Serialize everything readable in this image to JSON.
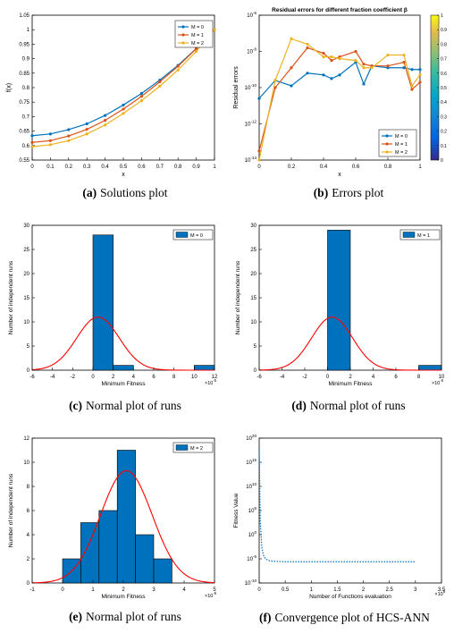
{
  "chart_data": [
    {
      "panel": "(a)",
      "type": "line",
      "title": "",
      "xlabel": "x",
      "ylabel": "f(x)",
      "xlim": [
        0,
        1
      ],
      "ylim": [
        0.55,
        1.05
      ],
      "xticks": [
        "0",
        "0.1",
        "0.2",
        "0.3",
        "0.4",
        "0.5",
        "0.6",
        "0.7",
        "0.8",
        "0.9",
        "1"
      ],
      "yticks": [
        "0.55",
        "0.6",
        "0.65",
        "0.7",
        "0.75",
        "0.8",
        "0.85",
        "0.9",
        "0.95",
        "1",
        "1.05"
      ],
      "legend_position": "top-right",
      "x": [
        0,
        0.1,
        0.2,
        0.3,
        0.4,
        0.5,
        0.6,
        0.7,
        0.8,
        0.9,
        1
      ],
      "series": [
        {
          "name": "M = 0",
          "color": "#0072bd",
          "values": [
            0.634,
            0.64,
            0.655,
            0.675,
            0.704,
            0.74,
            0.78,
            0.826,
            0.877,
            0.935,
            1.0
          ]
        },
        {
          "name": "M = 1",
          "color": "#d95319",
          "values": [
            0.611,
            0.617,
            0.633,
            0.656,
            0.687,
            0.726,
            0.77,
            0.82,
            0.874,
            0.934,
            1.0
          ]
        },
        {
          "name": "M = 2",
          "color": "#edb120",
          "values": [
            0.596,
            0.603,
            0.617,
            0.64,
            0.671,
            0.711,
            0.755,
            0.805,
            0.861,
            0.925,
            1.0
          ]
        }
      ]
    },
    {
      "panel": "(b)",
      "type": "line",
      "title": "Residual errors for different fraction coefficient β",
      "xlabel": "x",
      "ylabel": "Residual errors",
      "xlim": [
        0,
        1
      ],
      "ylim": [
        -14,
        -6
      ],
      "yscale": "log",
      "xticks": [
        "0",
        "0.2",
        "0.4",
        "0.6",
        "0.8",
        "1"
      ],
      "ytick_exponents": [
        "-14",
        "-12",
        "-10",
        "-8",
        "-6"
      ],
      "colorbar_ticks": [
        "0",
        "0.1",
        "0.2",
        "0.3",
        "0.4",
        "0.5",
        "0.6",
        "0.7",
        "0.8",
        "0.9",
        "1"
      ],
      "legend_position": "bottom-right",
      "x": [
        0,
        0.1,
        0.2,
        0.3,
        0.4,
        0.45,
        0.5,
        0.6,
        0.65,
        0.7,
        0.8,
        0.9,
        0.95,
        1
      ],
      "series": [
        {
          "name": "M = 0",
          "color": "#0072bd",
          "log10_values": [
            -10.6,
            -9.6,
            -9.9,
            -9.2,
            -9.3,
            -9.5,
            -9.3,
            -8.6,
            -9.8,
            -8.8,
            -8.9,
            -8.9,
            -9.0,
            -9.0
          ]
        },
        {
          "name": "M = 1",
          "color": "#d95319",
          "log10_values": [
            -13.5,
            -10.0,
            -8.9,
            -7.8,
            -8.1,
            -8.5,
            -8.3,
            -8.0,
            -8.7,
            -8.8,
            -8.8,
            -8.6,
            -10.1,
            -9.7
          ]
        },
        {
          "name": "M = 2",
          "color": "#edb120",
          "log10_values": [
            -14.0,
            -9.6,
            -7.3,
            -7.6,
            -8.3,
            -8.3,
            -8.4,
            -8.5,
            -8.9,
            -8.9,
            -8.2,
            -8.2,
            -9.9,
            -9.3
          ]
        }
      ]
    },
    {
      "panel": "(c)",
      "type": "bar",
      "xlabel": "Minimum Fitness",
      "ylabel": "Number of independent runs",
      "xlim": [
        -6,
        12
      ],
      "ylim": [
        0,
        30
      ],
      "x_exponent": "-5",
      "xticks": [
        "-6",
        "-4",
        "-2",
        "0",
        "2",
        "4",
        "6",
        "8",
        "10",
        "12"
      ],
      "yticks": [
        "0",
        "5",
        "10",
        "15",
        "20",
        "25",
        "30"
      ],
      "legend_position": "top-right",
      "series_name": "M = 0",
      "bins": [
        [
          0,
          2,
          28
        ],
        [
          2,
          4,
          1
        ],
        [
          10,
          12,
          1
        ]
      ],
      "normal_fit": {
        "mean": 0.5,
        "std": 2.1,
        "peak": 11
      }
    },
    {
      "panel": "(d)",
      "type": "bar",
      "xlabel": "Minimum Fitness",
      "ylabel": "Number of independent runs",
      "xlim": [
        -6,
        10
      ],
      "ylim": [
        0,
        30
      ],
      "x_exponent": "-5",
      "xticks": [
        "-6",
        "-4",
        "-2",
        "0",
        "2",
        "4",
        "6",
        "8",
        "10"
      ],
      "yticks": [
        "0",
        "5",
        "10",
        "15",
        "20",
        "25",
        "30"
      ],
      "legend_position": "top-right",
      "series_name": "M = 1",
      "bins": [
        [
          0,
          2,
          29
        ],
        [
          8,
          10,
          1
        ]
      ],
      "normal_fit": {
        "mean": 0.4,
        "std": 1.8,
        "peak": 11
      }
    },
    {
      "panel": "(e)",
      "type": "bar",
      "xlabel": "Minimum Fitness",
      "ylabel": "Number of independent runs",
      "xlim": [
        -1,
        5
      ],
      "ylim": [
        0,
        12
      ],
      "x_exponent": "-6",
      "xticks": [
        "-1",
        "0",
        "1",
        "2",
        "3",
        "4",
        "5"
      ],
      "yticks": [
        "0",
        "2",
        "4",
        "6",
        "8",
        "10",
        "12"
      ],
      "legend_position": "top-right",
      "series_name": "M = 2",
      "bins": [
        [
          0,
          0.6,
          2
        ],
        [
          0.6,
          1.2,
          5
        ],
        [
          1.2,
          1.8,
          6
        ],
        [
          1.8,
          2.4,
          11
        ],
        [
          2.4,
          3.0,
          4
        ],
        [
          3.0,
          3.6,
          2
        ]
      ],
      "normal_fit": {
        "mean": 2.1,
        "std": 0.85,
        "peak": 9.3
      }
    },
    {
      "panel": "(f)",
      "type": "line",
      "xlabel": "Number of Functions evaluation",
      "ylabel": "Fitness Value",
      "xlim": [
        0,
        3.5
      ],
      "ylim": [
        -10,
        20
      ],
      "yscale": "log",
      "x_exponent": "5",
      "xticks": [
        "0",
        "0.5",
        "1",
        "1.5",
        "2",
        "2.5",
        "3",
        "3.5"
      ],
      "ytick_exponents": [
        "-10",
        "-5",
        "0",
        "5",
        "10",
        "15",
        "20"
      ],
      "series": [
        {
          "color": "#0072bd",
          "linestyle": "dotted",
          "x": [
            0,
            0.02,
            0.05,
            0.08,
            0.12,
            0.2,
            0.3,
            0.5,
            1.0,
            2.0,
            3.0
          ],
          "log10_values": [
            18,
            3,
            -2.5,
            -4.2,
            -5.0,
            -5.4,
            -5.5,
            -5.6,
            -5.6,
            -5.6,
            -5.6
          ]
        }
      ]
    }
  ],
  "captions": {
    "a": {
      "label": "(a)",
      "text": "Solutions plot"
    },
    "b": {
      "label": "(b)",
      "text": "Errors plot"
    },
    "c": {
      "label": "(c)",
      "text": "Normal plot of runs"
    },
    "d": {
      "label": "(d)",
      "text": "Normal plot of runs"
    },
    "e": {
      "label": "(e)",
      "text": "Normal plot of runs"
    },
    "f": {
      "label": "(f)",
      "text": "Convergence plot of HCS-ANN"
    }
  }
}
